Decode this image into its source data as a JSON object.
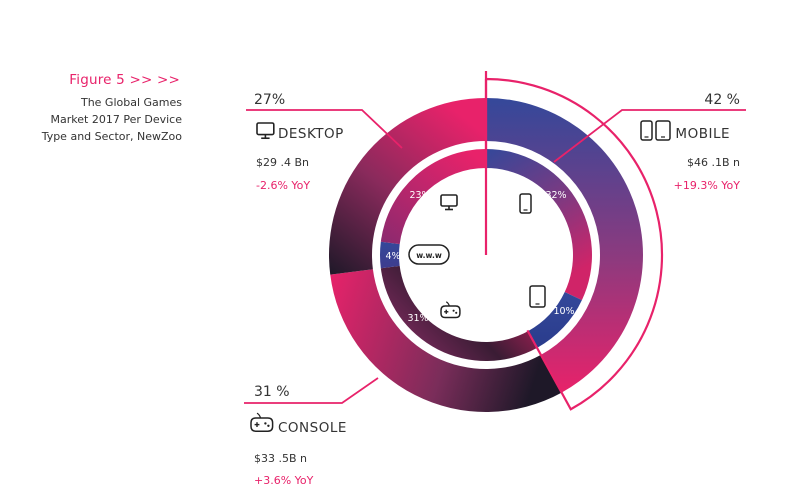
{
  "figure": {
    "label": "Figure 5  >>  >>",
    "caption_lines": [
      "The Global Games",
      "Market 2017 Per Device",
      "Type and Sector, NewZoo"
    ]
  },
  "colors": {
    "pink": "#e8226a",
    "blue": "#34489a",
    "dark": "#1e1828",
    "text": "#333333"
  },
  "chart_data": [
    {
      "type": "pie",
      "name": "outer-ring",
      "categories": [
        "MOBILE",
        "CONSOLE",
        "DESKTOP"
      ],
      "values": [
        42,
        31,
        27
      ],
      "value_labels": [
        "42 %",
        "31 %",
        "27%"
      ],
      "revenue": [
        "$46 .1B n",
        "$33 .5B n",
        "$29 .4 Bn"
      ],
      "yoy": [
        "+19.3% YoY",
        "+3.6% YoY",
        "-2.6% YoY"
      ]
    },
    {
      "type": "pie",
      "name": "inner-ring",
      "categories": [
        "smartphone",
        "tablet",
        "console",
        "browser",
        "desktop"
      ],
      "values": [
        32,
        10,
        31,
        4,
        23
      ],
      "value_labels": [
        "32%",
        "10%",
        "31%",
        "4%",
        "23%"
      ],
      "icons": [
        "smartphone-icon",
        "tablet-icon",
        "gamepad-icon",
        "www-icon",
        "monitor-icon"
      ]
    }
  ],
  "browser_badge": "w.w.w"
}
